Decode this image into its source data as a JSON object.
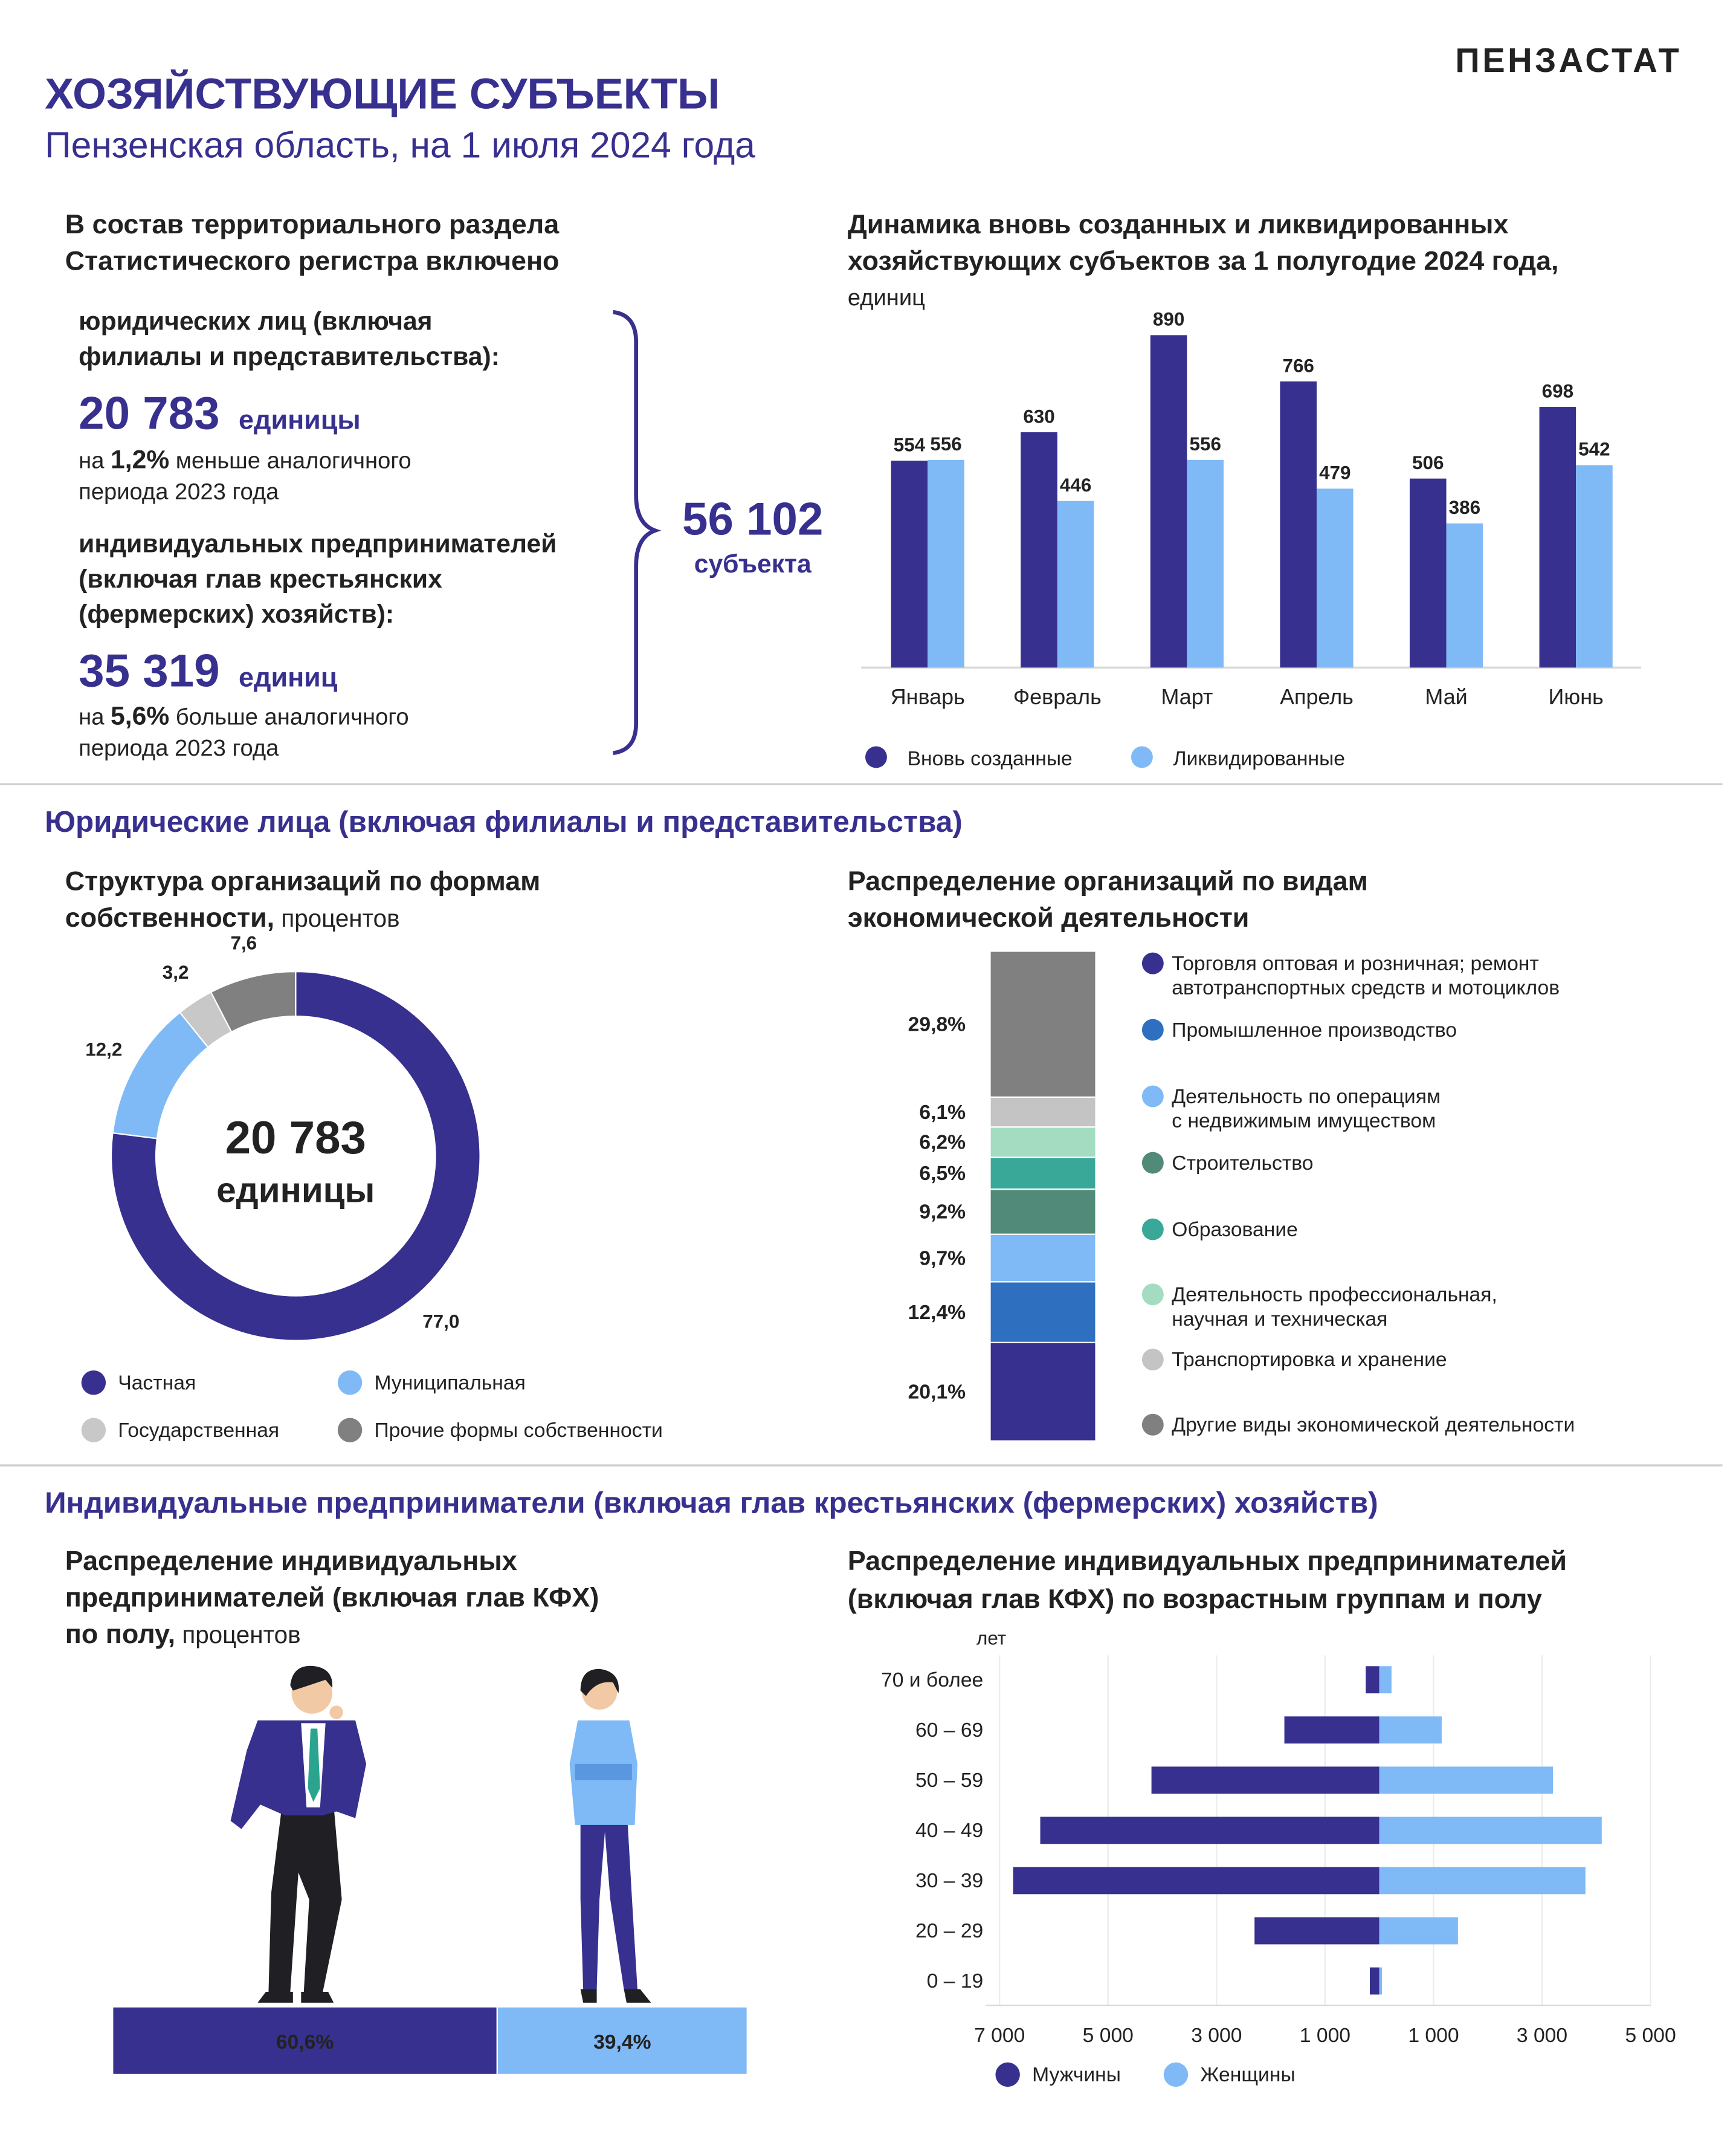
{
  "header": {
    "title": "ХОЗЯЙСТВУЮЩИЕ СУБЪЕКТЫ",
    "subtitle": "Пензенская область, на 1 июля 2024 года",
    "brand": "ПЕНЗАСТАТ"
  },
  "summary": {
    "heading": [
      "В состав территориального раздела",
      "Статистического регистра включено"
    ],
    "legal": {
      "label": [
        "юридических лиц (включая",
        "филиалы и представительства):"
      ],
      "value": "20 783",
      "unit": "единицы",
      "note": [
        "на ",
        "1,2%",
        " меньше аналогичного",
        "периода 2023 года"
      ]
    },
    "entrepreneurs": {
      "label": [
        "индивидуальных предпринимателей",
        "(включая глав крестьянских",
        "(фермерских) хозяйств):"
      ],
      "value": "35 319",
      "unit": "единиц",
      "note": [
        "на ",
        "5,6%",
        " больше аналогичного",
        "периода 2023 года"
      ]
    },
    "total": {
      "value": "56 102",
      "unit": "субъекта"
    }
  },
  "sections": [
    "Юридические лица (включая филиалы и представительства)",
    "Индивидуальные предприниматели (включая глав крестьянских (фермерских) хозяйств)"
  ],
  "chart_data": [
    {
      "type": "bar",
      "title": [
        "Динамика вновь созданных и ликвидированных",
        "хозяйствующих субъектов за 1 полугодие 2024 года,"
      ],
      "subtitle": "единиц",
      "categories": [
        "Январь",
        "Февраль",
        "Март",
        "Апрель",
        "Май",
        "Июнь"
      ],
      "series": [
        {
          "name": "Вновь созданные",
          "color": "#37308f",
          "values": [
            554,
            630,
            890,
            766,
            506,
            698
          ]
        },
        {
          "name": "Ликвидированные",
          "color": "#7fbaf7",
          "values": [
            556,
            446,
            556,
            479,
            386,
            542
          ]
        }
      ]
    },
    {
      "type": "pie",
      "title": [
        "Структура организаций по формам",
        "собственности,"
      ],
      "subtitle": "процентов",
      "center_label": [
        "20 783",
        "единицы"
      ],
      "categories": [
        "Частная",
        "Муниципальная",
        "Государственная",
        "Прочие формы собственности"
      ],
      "values": [
        77.0,
        12.2,
        3.2,
        7.6
      ],
      "value_labels": [
        "77,0",
        "12,2",
        "3,2",
        "7,6"
      ],
      "colors": [
        "#37308f",
        "#7fbaf7",
        "#c8c8c8",
        "#808080"
      ]
    },
    {
      "type": "stacked_column",
      "title": [
        "Распределение организаций по видам",
        "экономической деятельности"
      ],
      "categories": [
        [
          "Торговля оптовая и розничная; ремонт",
          "автотранспортных средств и мотоциклов"
        ],
        [
          "Промышленное производство"
        ],
        [
          "Деятельность по операциям",
          "с недвижимым имуществом"
        ],
        [
          "Строительство"
        ],
        [
          "Образование"
        ],
        [
          "Деятельность профессиональная,",
          "научная и техническая"
        ],
        [
          "Транспортировка и хранение"
        ],
        [
          "Другие виды экономической деятельности"
        ]
      ],
      "values": [
        20.1,
        12.4,
        9.7,
        9.2,
        6.5,
        6.2,
        6.1,
        29.8
      ],
      "value_labels": [
        "20,1%",
        "12,4%",
        "9,7%",
        "9,2%",
        "6,5%",
        "6,2%",
        "6,1%",
        "29,8%"
      ],
      "colors": [
        "#37308f",
        "#2f6fc0",
        "#7fbaf7",
        "#518a78",
        "#3aa899",
        "#a3dcc0",
        "#c4c4c4",
        "#808080"
      ]
    },
    {
      "type": "stacked_hbar",
      "title": [
        "Распределение индивидуальных",
        "предпринимателей (включая глав КФХ)",
        "по полу,"
      ],
      "subtitle": "процентов",
      "values": [
        60.6,
        39.4
      ],
      "value_labels": [
        "60,6%",
        "39,4%"
      ],
      "colors": [
        "#37308f",
        "#7fbaf7"
      ]
    },
    {
      "type": "pyramid",
      "title": [
        "Распределение индивидуальных предпринимателей",
        "(включая глав КФХ) по возрастным группам и полу"
      ],
      "y_label": "лет",
      "categories": [
        "70 и более",
        "60 – 69",
        "50 – 59",
        "40 – 49",
        "30 – 39",
        "20 – 29",
        "0 – 19"
      ],
      "series": [
        {
          "name": "Мужчины",
          "color": "#37308f",
          "values": [
            -250,
            -1750,
            -4200,
            -6250,
            -6750,
            -2300,
            -175
          ]
        },
        {
          "name": "Женщины",
          "color": "#7fbaf7",
          "values": [
            225,
            1150,
            3200,
            4100,
            3800,
            1450,
            50
          ]
        }
      ],
      "xlim": [
        -7000,
        5000
      ],
      "xticks": [
        {
          "value": -7000,
          "label": "7 000"
        },
        {
          "value": -5000,
          "label": "5 000"
        },
        {
          "value": -3000,
          "label": "3 000"
        },
        {
          "value": -1000,
          "label": "1 000"
        },
        {
          "value": 1000,
          "label": "1 000"
        },
        {
          "value": 3000,
          "label": "3 000"
        },
        {
          "value": 5000,
          "label": "5 000"
        }
      ],
      "grid": true
    }
  ]
}
